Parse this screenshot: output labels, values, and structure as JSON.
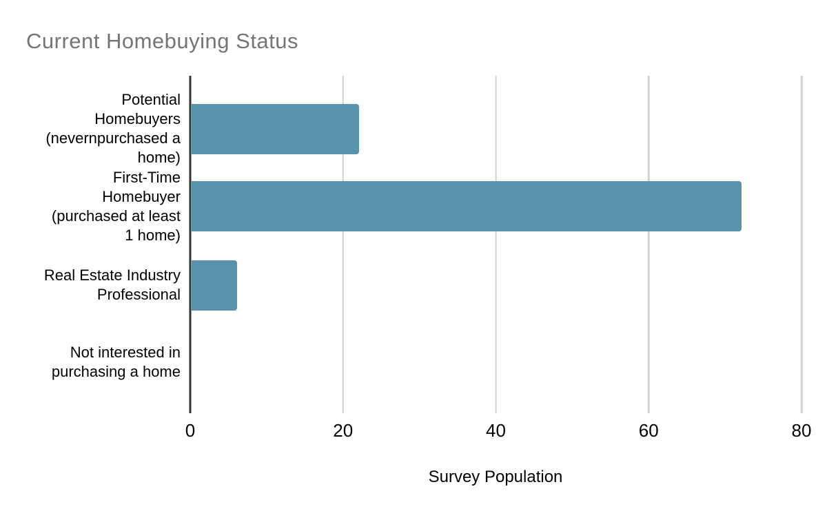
{
  "chart_data": {
    "type": "bar",
    "orientation": "horizontal",
    "title": "Current Homebuying Status",
    "categories": [
      "Potential\nHomebuyers\n(nevernpurchased a\nhome)",
      "First-Time\nHomebuyer\n(purchased at least\n1 home)",
      "Real Estate Industry\nProfessional",
      "Not interested in\npurchasing a home"
    ],
    "values": [
      22,
      72,
      6,
      0
    ],
    "xlabel": "Survey Population",
    "ylabel": "",
    "xlim": [
      0,
      80
    ],
    "x_ticks": [
      0,
      20,
      40,
      60,
      80
    ],
    "grid": true,
    "legend": false,
    "colors": {
      "bar": "#5892ab",
      "title": "#757575",
      "gridline": "#d2d2d2",
      "axis_baseline": "#333333",
      "text": "#000000"
    }
  }
}
